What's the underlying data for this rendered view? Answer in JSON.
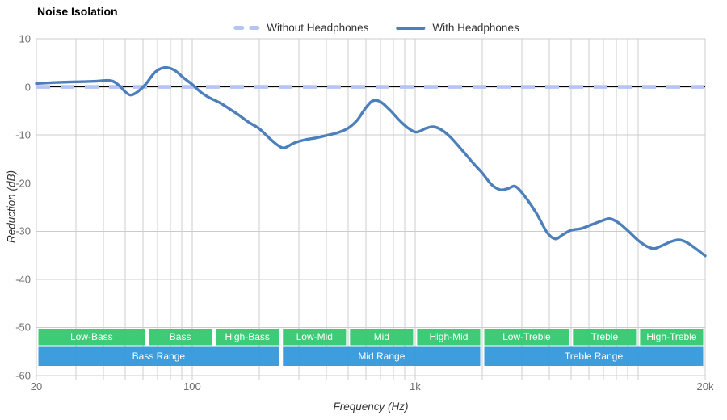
{
  "title": "Noise Isolation",
  "legend": [
    {
      "label": "Without Headphones",
      "style": "dashed"
    },
    {
      "label": "With Headphones",
      "style": "solid"
    }
  ],
  "axes": {
    "y_title": "Reduction (dB)",
    "x_title": "Frequency (Hz)",
    "y_ticks": [
      10,
      0,
      -10,
      -20,
      -30,
      -40,
      -50,
      -60
    ],
    "x_ticks": [
      {
        "f": 20,
        "label": "20"
      },
      {
        "f": 100,
        "label": "100"
      },
      {
        "f": 1000,
        "label": "1k"
      },
      {
        "f": 20000,
        "label": "20k"
      }
    ]
  },
  "colors": {
    "with_headphones": "#4d7fba",
    "without_headphones": "#b5c4f1",
    "zero_line": "#000000",
    "grid": "#cccccc",
    "sub_band": "#2ec76d",
    "range_band": "#2e96da",
    "tick_text": "#6f6f6f",
    "band_text": "#ffffff"
  },
  "chart_data": {
    "type": "line",
    "title": "Noise Isolation",
    "xlabel": "Frequency (Hz)",
    "ylabel": "Reduction (dB)",
    "x_scale": "log",
    "xlim": [
      20,
      20000
    ],
    "ylim": [
      -60,
      10
    ],
    "grid": "on",
    "legend_position": "top-center",
    "series": [
      {
        "name": "Without Headphones",
        "style": "dashed",
        "points": [
          [
            20,
            0
          ],
          [
            20000,
            0
          ]
        ]
      },
      {
        "name": "With Headphones",
        "style": "solid",
        "points": [
          [
            20,
            0.7
          ],
          [
            24,
            0.9
          ],
          [
            30,
            1.05
          ],
          [
            36,
            1.15
          ],
          [
            43,
            1.3
          ],
          [
            47,
            0.3
          ],
          [
            50,
            -1.0
          ],
          [
            53,
            -1.7
          ],
          [
            57,
            -1.0
          ],
          [
            62,
            0.6
          ],
          [
            68,
            3.0
          ],
          [
            75,
            4.0
          ],
          [
            83,
            3.5
          ],
          [
            92,
            1.8
          ],
          [
            100,
            0.5
          ],
          [
            110,
            -1.2
          ],
          [
            120,
            -2.3
          ],
          [
            133,
            -3.3
          ],
          [
            145,
            -4.4
          ],
          [
            160,
            -5.7
          ],
          [
            180,
            -7.4
          ],
          [
            200,
            -8.7
          ],
          [
            220,
            -10.5
          ],
          [
            240,
            -12.0
          ],
          [
            258,
            -12.7
          ],
          [
            285,
            -11.7
          ],
          [
            320,
            -11.0
          ],
          [
            360,
            -10.6
          ],
          [
            400,
            -10.1
          ],
          [
            450,
            -9.5
          ],
          [
            500,
            -8.6
          ],
          [
            550,
            -6.9
          ],
          [
            595,
            -4.6
          ],
          [
            635,
            -3.1
          ],
          [
            665,
            -2.8
          ],
          [
            705,
            -3.2
          ],
          [
            770,
            -4.8
          ],
          [
            840,
            -6.7
          ],
          [
            920,
            -8.4
          ],
          [
            1010,
            -9.4
          ],
          [
            1120,
            -8.6
          ],
          [
            1210,
            -8.3
          ],
          [
            1320,
            -9.0
          ],
          [
            1450,
            -10.6
          ],
          [
            1620,
            -13.1
          ],
          [
            1810,
            -15.7
          ],
          [
            2000,
            -17.9
          ],
          [
            2200,
            -20.3
          ],
          [
            2420,
            -21.4
          ],
          [
            2620,
            -21.1
          ],
          [
            2820,
            -20.7
          ],
          [
            3100,
            -22.7
          ],
          [
            3500,
            -26.3
          ],
          [
            3900,
            -30.2
          ],
          [
            4250,
            -31.6
          ],
          [
            4600,
            -30.7
          ],
          [
            5000,
            -29.8
          ],
          [
            5600,
            -29.4
          ],
          [
            6300,
            -28.5
          ],
          [
            7000,
            -27.7
          ],
          [
            7500,
            -27.4
          ],
          [
            8200,
            -28.3
          ],
          [
            9000,
            -29.9
          ],
          [
            10000,
            -31.9
          ],
          [
            11000,
            -33.2
          ],
          [
            11800,
            -33.6
          ],
          [
            12800,
            -33.0
          ],
          [
            14000,
            -32.2
          ],
          [
            15200,
            -31.8
          ],
          [
            16500,
            -32.3
          ],
          [
            18000,
            -33.5
          ],
          [
            20000,
            -35.1
          ]
        ]
      }
    ],
    "frequency_sub_bands": [
      {
        "label": "Low-Bass",
        "from": 20,
        "to": 62.5
      },
      {
        "label": "Bass",
        "from": 62.5,
        "to": 125
      },
      {
        "label": "High-Bass",
        "from": 125,
        "to": 250
      },
      {
        "label": "Low-Mid",
        "from": 250,
        "to": 500
      },
      {
        "label": "Mid",
        "from": 500,
        "to": 1000
      },
      {
        "label": "High-Mid",
        "from": 1000,
        "to": 2000
      },
      {
        "label": "Low-Treble",
        "from": 2000,
        "to": 5000
      },
      {
        "label": "Treble",
        "from": 5000,
        "to": 10000
      },
      {
        "label": "High-Treble",
        "from": 10000,
        "to": 20000
      }
    ],
    "frequency_ranges": [
      {
        "label": "Bass Range",
        "from": 20,
        "to": 250
      },
      {
        "label": "Mid Range",
        "from": 250,
        "to": 2000
      },
      {
        "label": "Treble Range",
        "from": 2000,
        "to": 20000
      }
    ]
  }
}
